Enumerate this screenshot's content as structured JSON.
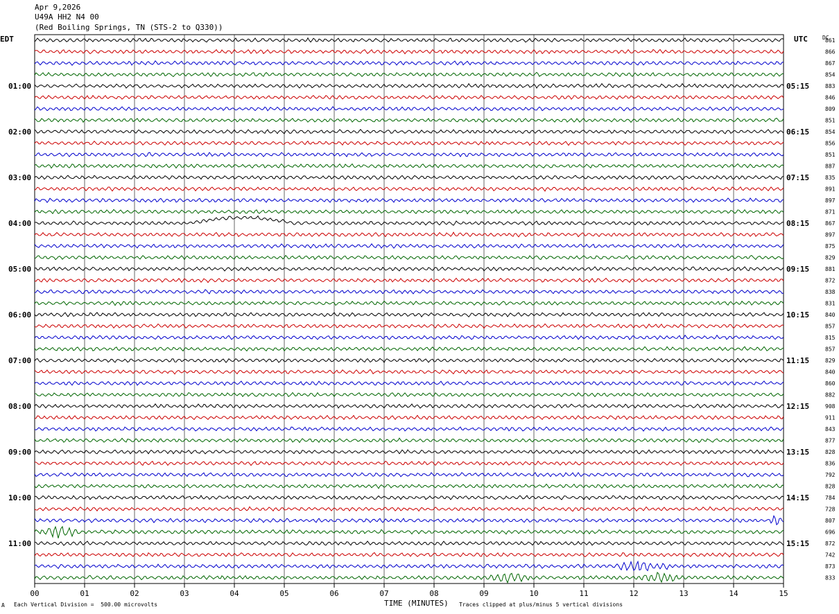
{
  "header": {
    "date": "Apr 9,2026",
    "station": "U49A HH2 N4 00",
    "location": "(Red Boiling Springs, TN (STS-2 to Q330))"
  },
  "labels": {
    "left_tz": "EDT",
    "right_tz": "UTC",
    "dc": "DC",
    "xlabel": "TIME (MINUTES)",
    "scale_note": "Each Vertical Division =  500.00 microvolts",
    "clip_note": "Traces clipped at plus/minus 5 vertical divisions",
    "corner_mark": "A"
  },
  "colors": {
    "black": "#000000",
    "red": "#cc0000",
    "blue": "#0000cc",
    "green": "#006600"
  },
  "chart_data": {
    "type": "line",
    "xlabel": "TIME (MINUTES)",
    "xlim": [
      0,
      15
    ],
    "x_ticks": [
      "00",
      "01",
      "02",
      "03",
      "04",
      "05",
      "06",
      "07",
      "08",
      "09",
      "10",
      "11",
      "12",
      "13",
      "14",
      "15"
    ],
    "left_time_labels": [
      "01:00",
      "02:00",
      "03:00",
      "04:00",
      "05:00",
      "06:00",
      "07:00",
      "08:00",
      "09:00",
      "10:00",
      "11:00"
    ],
    "right_time_labels": [
      "05:15",
      "06:15",
      "07:15",
      "08:15",
      "09:15",
      "10:15",
      "11:15",
      "12:15",
      "13:15",
      "14:15",
      "15:15"
    ],
    "trace_colors": [
      "black",
      "red",
      "blue",
      "green"
    ],
    "dc_values": [
      861,
      866,
      867,
      854,
      883,
      846,
      809,
      851,
      854,
      856,
      851,
      887,
      835,
      891,
      897,
      871,
      867,
      897,
      875,
      829,
      881,
      872,
      838,
      831,
      840,
      857,
      815,
      857,
      829,
      840,
      860,
      882,
      908,
      911,
      843,
      877,
      828,
      836,
      792,
      828,
      784,
      728,
      807,
      696,
      872,
      742,
      873,
      833
    ],
    "events": [
      {
        "trace": 16,
        "x0": 3.1,
        "x1": 5.2,
        "kind": "swell"
      },
      {
        "trace": 42,
        "x0": 14.7,
        "x1": 15.0,
        "kind": "burst"
      },
      {
        "trace": 43,
        "x0": 0.0,
        "x1": 1.0,
        "kind": "burst"
      },
      {
        "trace": 47,
        "x0": 9.0,
        "x1": 10.0,
        "kind": "burst"
      },
      {
        "trace": 46,
        "x0": 11.5,
        "x1": 12.8,
        "kind": "burst"
      },
      {
        "trace": 47,
        "x0": 12.0,
        "x1": 13.0,
        "kind": "burst"
      }
    ]
  }
}
